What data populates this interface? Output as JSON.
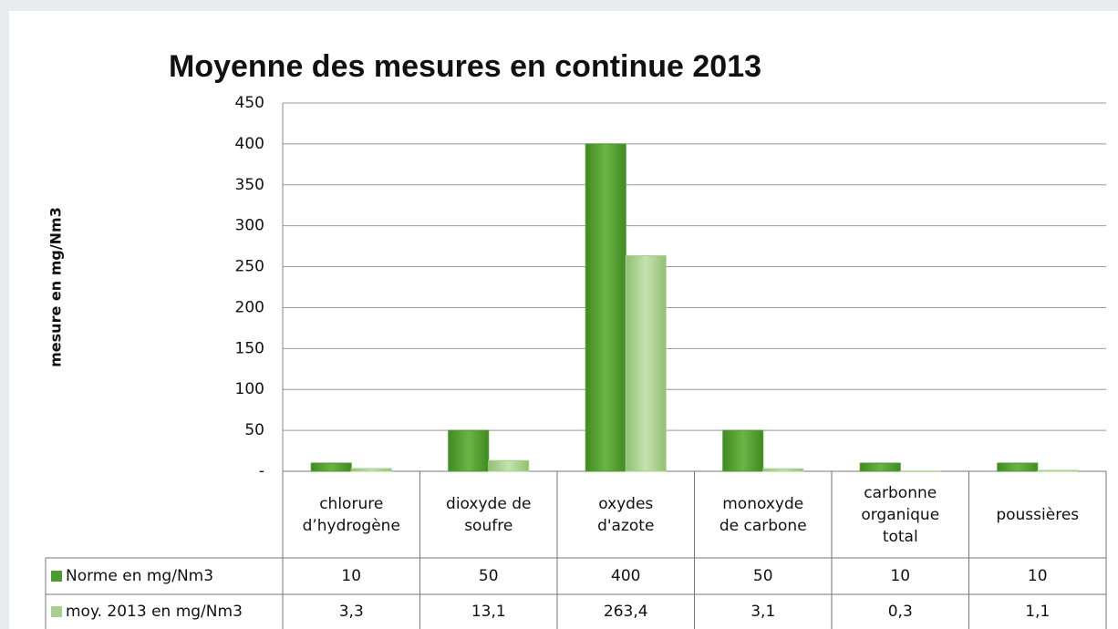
{
  "chart_data": {
    "type": "bar",
    "title": "Moyenne des mesures en continue 2013",
    "y_label": "mesure  en mg/Nm3",
    "categories": [
      [
        "chlorure",
        "d’hydrogène"
      ],
      [
        "dioxyde de",
        "soufre"
      ],
      [
        "oxydes",
        "d'azote"
      ],
      [
        "monoxyde",
        "de carbone"
      ],
      [
        "carbonne",
        "organique",
        "total"
      ],
      [
        "poussières"
      ]
    ],
    "series": [
      {
        "name": "Norme en mg/Nm3",
        "color": "#4f9a2c",
        "values": [
          10,
          50,
          400,
          50,
          10,
          10
        ]
      },
      {
        "name": "moy. 2013 en mg/Nm3",
        "color": "#a8d08d",
        "values": [
          3.3,
          13.1,
          263.4,
          3.1,
          0.3,
          1.1
        ],
        "value_labels": [
          "3,3",
          "13,1",
          "263,4",
          "3,1",
          "0,3",
          "1,1"
        ]
      }
    ],
    "ylim": [
      0,
      450
    ],
    "yticks": [
      {
        "value": 0,
        "label": "-"
      },
      50,
      100,
      150,
      200,
      250,
      300,
      350,
      400,
      450
    ],
    "grid": true
  }
}
